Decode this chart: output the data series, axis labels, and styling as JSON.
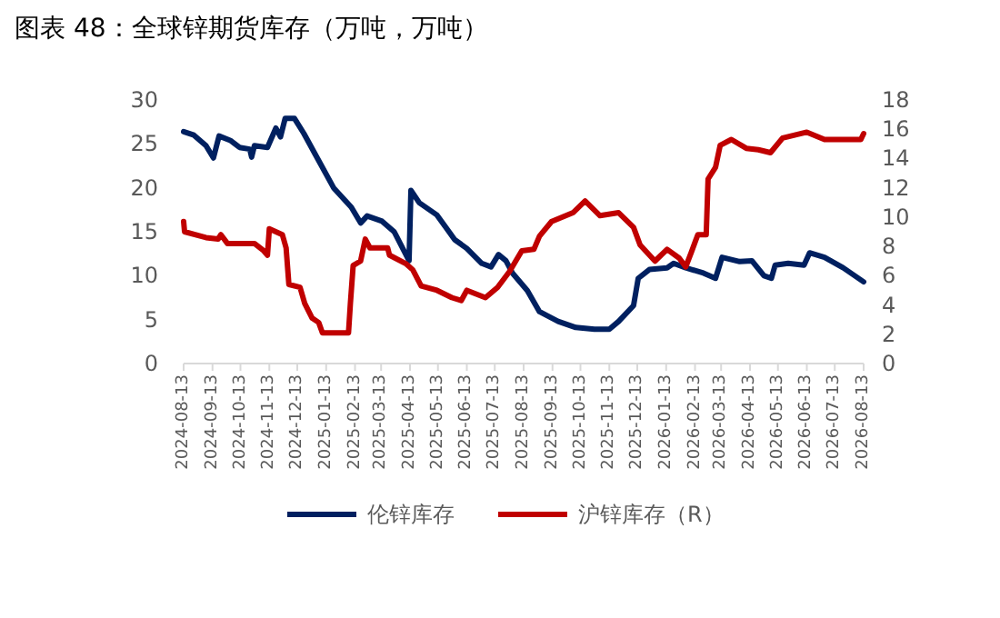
{
  "chart_data": {
    "type": "line",
    "title": "图表 48：全球锌期货库存（万吨，万吨）",
    "xlim": [
      "2024-08-13",
      "2026-08-13"
    ],
    "xticks": [
      "2024-08-13",
      "2024-09-13",
      "2024-10-13",
      "2024-11-13",
      "2024-12-13",
      "2025-01-13",
      "2025-02-13",
      "2025-03-13",
      "2025-04-13",
      "2025-05-13",
      "2025-06-13",
      "2025-07-13",
      "2025-08-13",
      "2025-09-13",
      "2025-10-13",
      "2025-11-13",
      "2025-12-13",
      "2026-01-13",
      "2026-02-13",
      "2026-03-13",
      "2026-04-13",
      "2026-05-13",
      "2026-06-13",
      "2026-07-13",
      "2026-08-13"
    ],
    "ylim": [
      0,
      30
    ],
    "yticks": [
      0,
      5,
      10,
      15,
      20,
      25,
      30
    ],
    "y2lim": [
      0,
      18
    ],
    "y2ticks": [
      0,
      2,
      4,
      6,
      8,
      10,
      12,
      14,
      16,
      18
    ],
    "legend": "bottom",
    "marker": "none",
    "line_style": "solid",
    "series": [
      {
        "name": "伦锌库存",
        "color": "#002060",
        "x": [
          "2024-08-13",
          "2024-08-24",
          "2024-09-06",
          "2024-09-14",
          "2024-09-20",
          "2024-10-02",
          "2024-10-12",
          "2024-10-23",
          "2024-10-25",
          "2024-10-28",
          "2024-11-11",
          "2024-11-20",
          "2024-11-25",
          "2024-11-30",
          "2024-12-10",
          "2024-12-20",
          "2025-01-05",
          "2025-01-21",
          "2025-02-09",
          "2025-02-19",
          "2025-02-26",
          "2025-03-14",
          "2025-03-27",
          "2025-04-12",
          "2025-04-14",
          "2025-04-23",
          "2025-05-12",
          "2025-05-31",
          "2025-06-13",
          "2025-06-29",
          "2025-07-09",
          "2025-07-17",
          "2025-07-25",
          "2025-08-01",
          "2025-08-17",
          "2025-08-30",
          "2025-09-19",
          "2025-10-08",
          "2025-10-28",
          "2025-11-13",
          "2025-11-23",
          "2025-12-09",
          "2025-12-14",
          "2025-12-26",
          "2026-01-14",
          "2026-01-21",
          "2026-02-03",
          "2026-02-22",
          "2026-03-07",
          "2026-03-14",
          "2026-04-02",
          "2026-04-15",
          "2026-04-28",
          "2026-05-06",
          "2026-05-10",
          "2026-05-24",
          "2026-06-10",
          "2026-06-16",
          "2026-07-02",
          "2026-07-22",
          "2026-08-13"
        ],
        "values": [
          26.4,
          26.0,
          24.8,
          23.4,
          25.9,
          25.4,
          24.6,
          24.4,
          23.5,
          24.8,
          24.6,
          26.8,
          25.8,
          27.9,
          27.9,
          26.2,
          23.1,
          20.0,
          17.8,
          16.0,
          16.8,
          16.2,
          15.0,
          11.7,
          19.7,
          18.3,
          16.9,
          14.1,
          13.1,
          11.4,
          11.0,
          12.4,
          11.7,
          10.3,
          8.3,
          5.9,
          4.8,
          4.1,
          3.9,
          3.9,
          4.8,
          6.6,
          9.7,
          10.7,
          10.9,
          11.4,
          10.9,
          10.3,
          9.7,
          12.1,
          11.6,
          11.7,
          10.0,
          9.7,
          11.2,
          11.4,
          11.2,
          12.6,
          12.1,
          10.9,
          9.3
        ]
      },
      {
        "name": "沪锌库存（R）",
        "color": "#c00000",
        "axis": "y2",
        "x": [
          "2024-08-13",
          "2024-08-14",
          "2024-09-06",
          "2024-09-19",
          "2024-09-22",
          "2024-09-29",
          "2024-10-28",
          "2024-11-07",
          "2024-11-11",
          "2024-11-13",
          "2024-11-27",
          "2024-12-01",
          "2024-12-04",
          "2024-12-16",
          "2024-12-21",
          "2024-12-29",
          "2025-01-05",
          "2025-01-09",
          "2025-02-06",
          "2025-02-08",
          "2025-02-11",
          "2025-02-19",
          "2025-02-24",
          "2025-03-01",
          "2025-03-20",
          "2025-03-22",
          "2025-04-09",
          "2025-04-16",
          "2025-04-25",
          "2025-05-12",
          "2025-05-28",
          "2025-06-07",
          "2025-06-13",
          "2025-07-03",
          "2025-07-16",
          "2025-07-29",
          "2025-08-11",
          "2025-08-24",
          "2025-08-30",
          "2025-09-12",
          "2025-10-05",
          "2025-10-18",
          "2025-11-03",
          "2025-11-23",
          "2025-12-09",
          "2025-12-16",
          "2026-01-01",
          "2026-01-14",
          "2026-01-27",
          "2026-02-03",
          "2026-02-09",
          "2026-02-16",
          "2026-02-25",
          "2026-02-27",
          "2026-03-07",
          "2026-03-12",
          "2026-03-24",
          "2026-04-09",
          "2026-04-22",
          "2026-05-05",
          "2026-05-18",
          "2026-06-13",
          "2026-07-02",
          "2026-08-10",
          "2026-08-13"
        ],
        "values": [
          9.7,
          9.0,
          8.6,
          8.5,
          8.8,
          8.2,
          8.2,
          7.7,
          7.4,
          9.2,
          8.8,
          7.9,
          5.4,
          5.2,
          4.1,
          3.1,
          2.8,
          2.1,
          2.1,
          4.1,
          6.7,
          7.0,
          8.5,
          7.9,
          7.9,
          7.4,
          6.8,
          6.4,
          5.3,
          5.0,
          4.5,
          4.3,
          5.0,
          4.5,
          5.2,
          6.3,
          7.7,
          7.8,
          8.7,
          9.7,
          10.3,
          11.1,
          10.1,
          10.3,
          9.3,
          8.1,
          7.0,
          7.8,
          7.2,
          6.6,
          7.6,
          8.8,
          8.8,
          12.6,
          13.4,
          14.9,
          15.3,
          14.7,
          14.6,
          14.4,
          15.4,
          15.8,
          15.3,
          15.3,
          15.7
        ]
      }
    ]
  }
}
